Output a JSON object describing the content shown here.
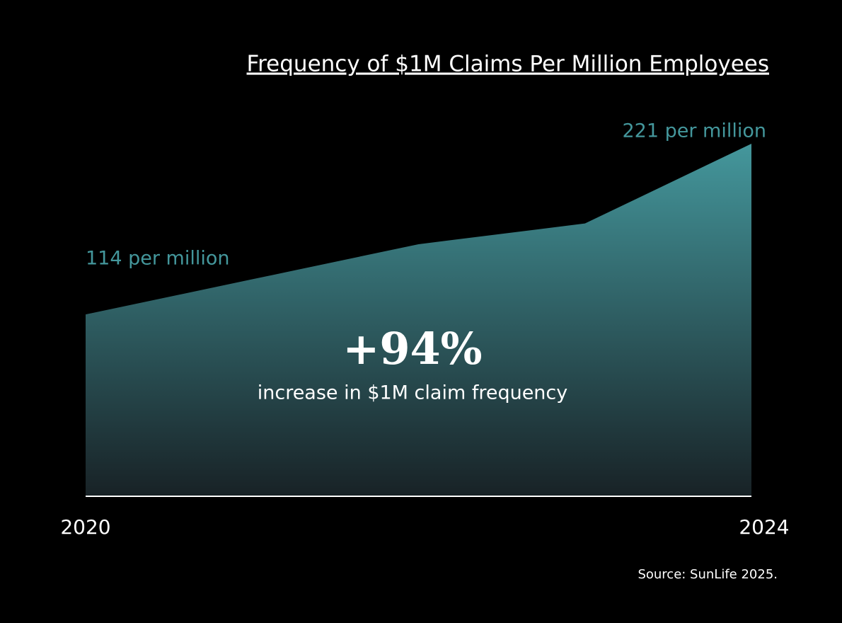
{
  "chart_data": {
    "type": "area",
    "title": "Frequency of $1M Claims Per Million Employees",
    "categories": [
      "2020",
      null,
      null,
      null,
      "2024"
    ],
    "values": [
      114,
      136,
      158,
      171,
      221
    ],
    "value_labels": [
      "114 per million",
      null,
      null,
      null,
      "221 per million"
    ],
    "color": "#44979c",
    "ylim": [
      0,
      221
    ],
    "annotations": [
      "+94%",
      "increase in $1M claim frequency"
    ],
    "source": "Source: SunLife 2025."
  }
}
